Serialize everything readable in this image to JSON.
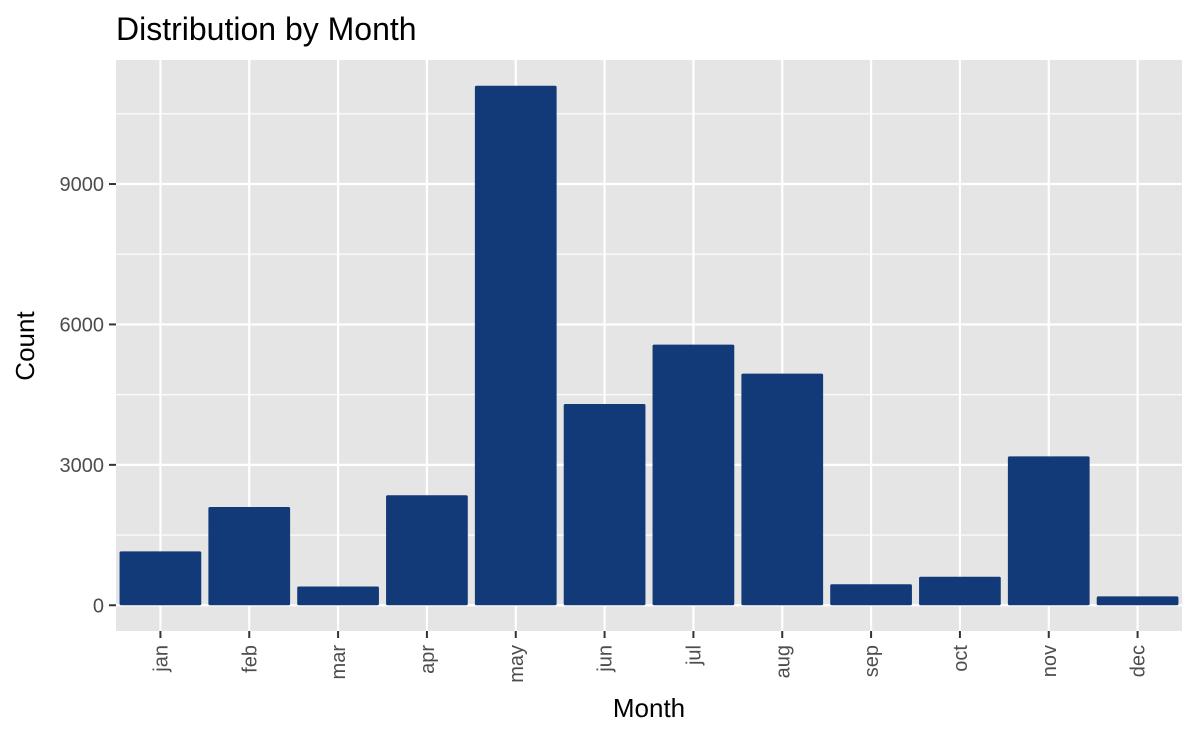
{
  "chart_data": {
    "type": "bar",
    "title": "Distribution by Month",
    "xlabel": "Month",
    "ylabel": "Count",
    "categories": [
      "jan",
      "feb",
      "mar",
      "apr",
      "may",
      "jun",
      "jul",
      "aug",
      "sep",
      "oct",
      "nov",
      "dec"
    ],
    "values": [
      1150,
      2100,
      400,
      2350,
      11100,
      4300,
      5570,
      4950,
      450,
      610,
      3180,
      190
    ],
    "ylim": [
      -550,
      11650
    ],
    "yticks": [
      0,
      3000,
      6000,
      9000
    ],
    "ytick_labels": [
      "0",
      "3000",
      "6000",
      "9000"
    ],
    "grid": true,
    "colors": {
      "bar": "#123A78",
      "panel": "#E5E5E5",
      "grid": "#FFFFFF",
      "text": "#000000",
      "tick_text": "#4D4D4D",
      "tick": "#333333"
    }
  }
}
